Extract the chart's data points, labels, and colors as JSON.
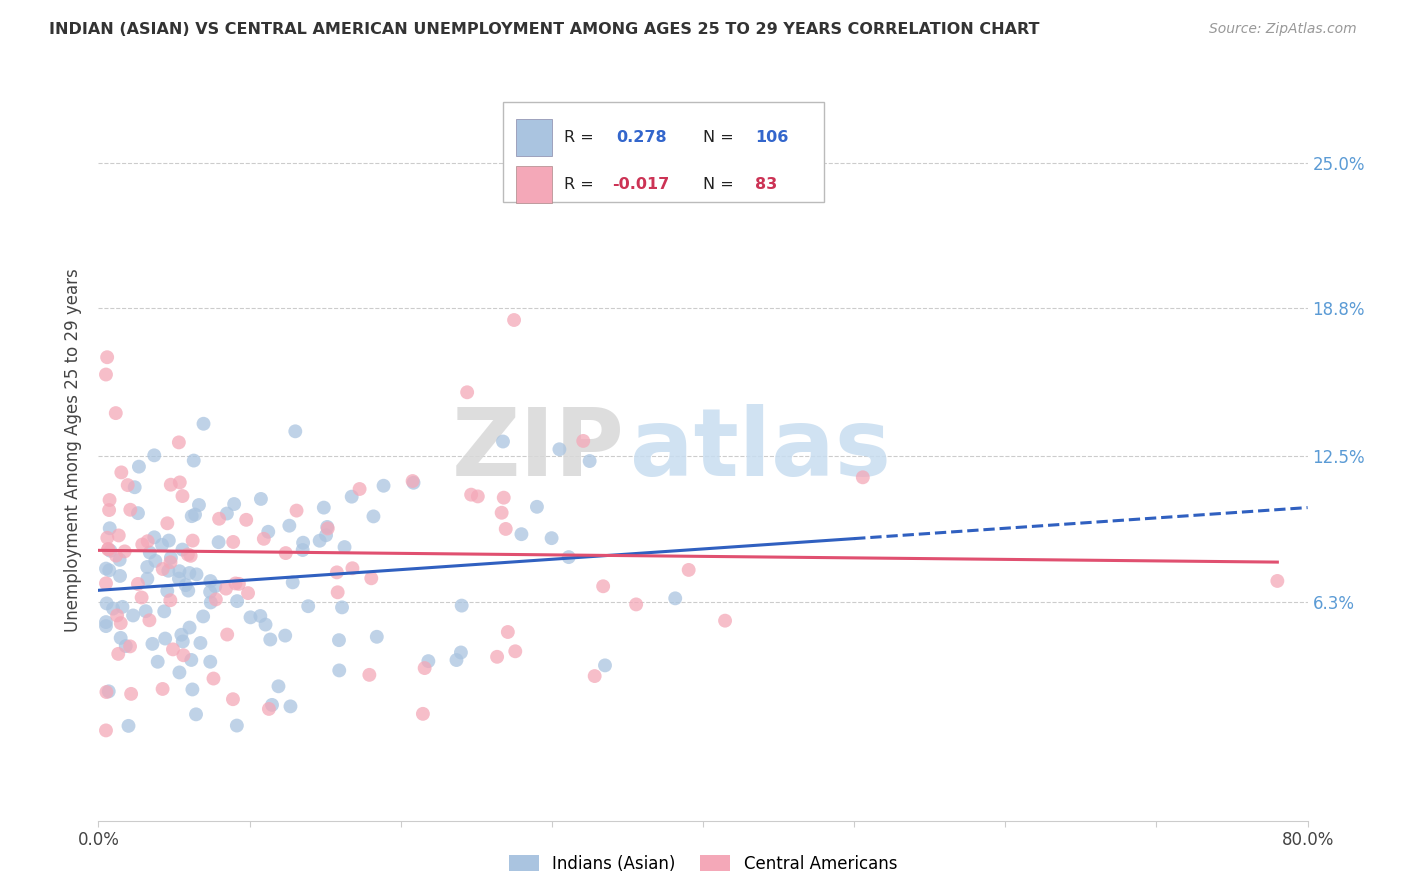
{
  "title": "INDIAN (ASIAN) VS CENTRAL AMERICAN UNEMPLOYMENT AMONG AGES 25 TO 29 YEARS CORRELATION CHART",
  "source": "Source: ZipAtlas.com",
  "ylabel": "Unemployment Among Ages 25 to 29 years",
  "ytick_labels": [
    "6.3%",
    "12.5%",
    "18.8%",
    "25.0%"
  ],
  "ytick_values": [
    0.063,
    0.125,
    0.188,
    0.25
  ],
  "xlim": [
    0.0,
    0.8
  ],
  "ylim": [
    -0.03,
    0.285
  ],
  "blue_R": 0.278,
  "blue_N": 106,
  "pink_R": -0.017,
  "pink_N": 83,
  "blue_color": "#aac4e0",
  "pink_color": "#f4a8b8",
  "blue_line_color": "#3060c0",
  "pink_line_color": "#e05070",
  "watermark_zip": "ZIP",
  "watermark_atlas": "atlas",
  "legend_label_blue": "Indians (Asian)",
  "legend_label_pink": "Central Americans",
  "blue_line_x0": 0.0,
  "blue_line_y0": 0.068,
  "blue_line_x1": 0.5,
  "blue_line_y1": 0.09,
  "blue_line_xdash_x0": 0.5,
  "blue_line_xdash_x1": 0.8,
  "pink_line_x0": 0.0,
  "pink_line_y0": 0.085,
  "pink_line_x1": 0.78,
  "pink_line_y1": 0.08
}
